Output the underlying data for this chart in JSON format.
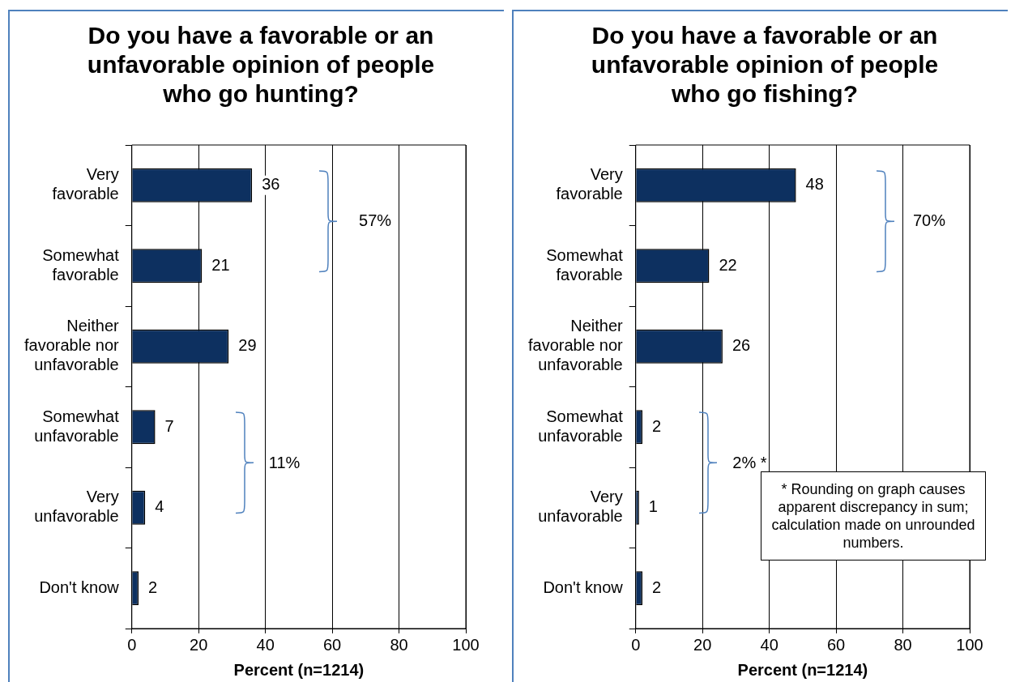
{
  "chart_data": [
    {
      "type": "bar",
      "orientation": "horizontal",
      "title": "Do you have a favorable or an unfavorable opinion of people who go hunting?",
      "xlabel": "Percent (n=1214)",
      "categories": [
        "Very favorable",
        "Somewhat favorable",
        "Neither favorable nor unfavorable",
        "Somewhat unfavorable",
        "Very unfavorable",
        "Don't know"
      ],
      "values": [
        36,
        21,
        29,
        7,
        4,
        2
      ],
      "color": "#0d3060",
      "xlim": [
        0,
        100
      ],
      "xticks": [
        0,
        20,
        40,
        60,
        80,
        100
      ],
      "grid": "x",
      "data_labels": true,
      "annotations": [
        "57%",
        "11%"
      ]
    },
    {
      "type": "bar",
      "orientation": "horizontal",
      "title": "Do you have a favorable or an unfavorable opinion of people who go fishing?",
      "xlabel": "Percent (n=1214)",
      "categories": [
        "Very favorable",
        "Somewhat favorable",
        "Neither favorable nor unfavorable",
        "Somewhat unfavorable",
        "Very unfavorable",
        "Don't know"
      ],
      "values": [
        48,
        22,
        26,
        2,
        1,
        2
      ],
      "color": "#0d3060",
      "xlim": [
        0,
        100
      ],
      "xticks": [
        0,
        20,
        40,
        60,
        80,
        100
      ],
      "grid": "x",
      "data_labels": true,
      "annotations": [
        "70%",
        "2% *",
        "* Rounding on graph causes apparent discrepancy in sum; calculation made on unrounded numbers."
      ]
    }
  ]
}
